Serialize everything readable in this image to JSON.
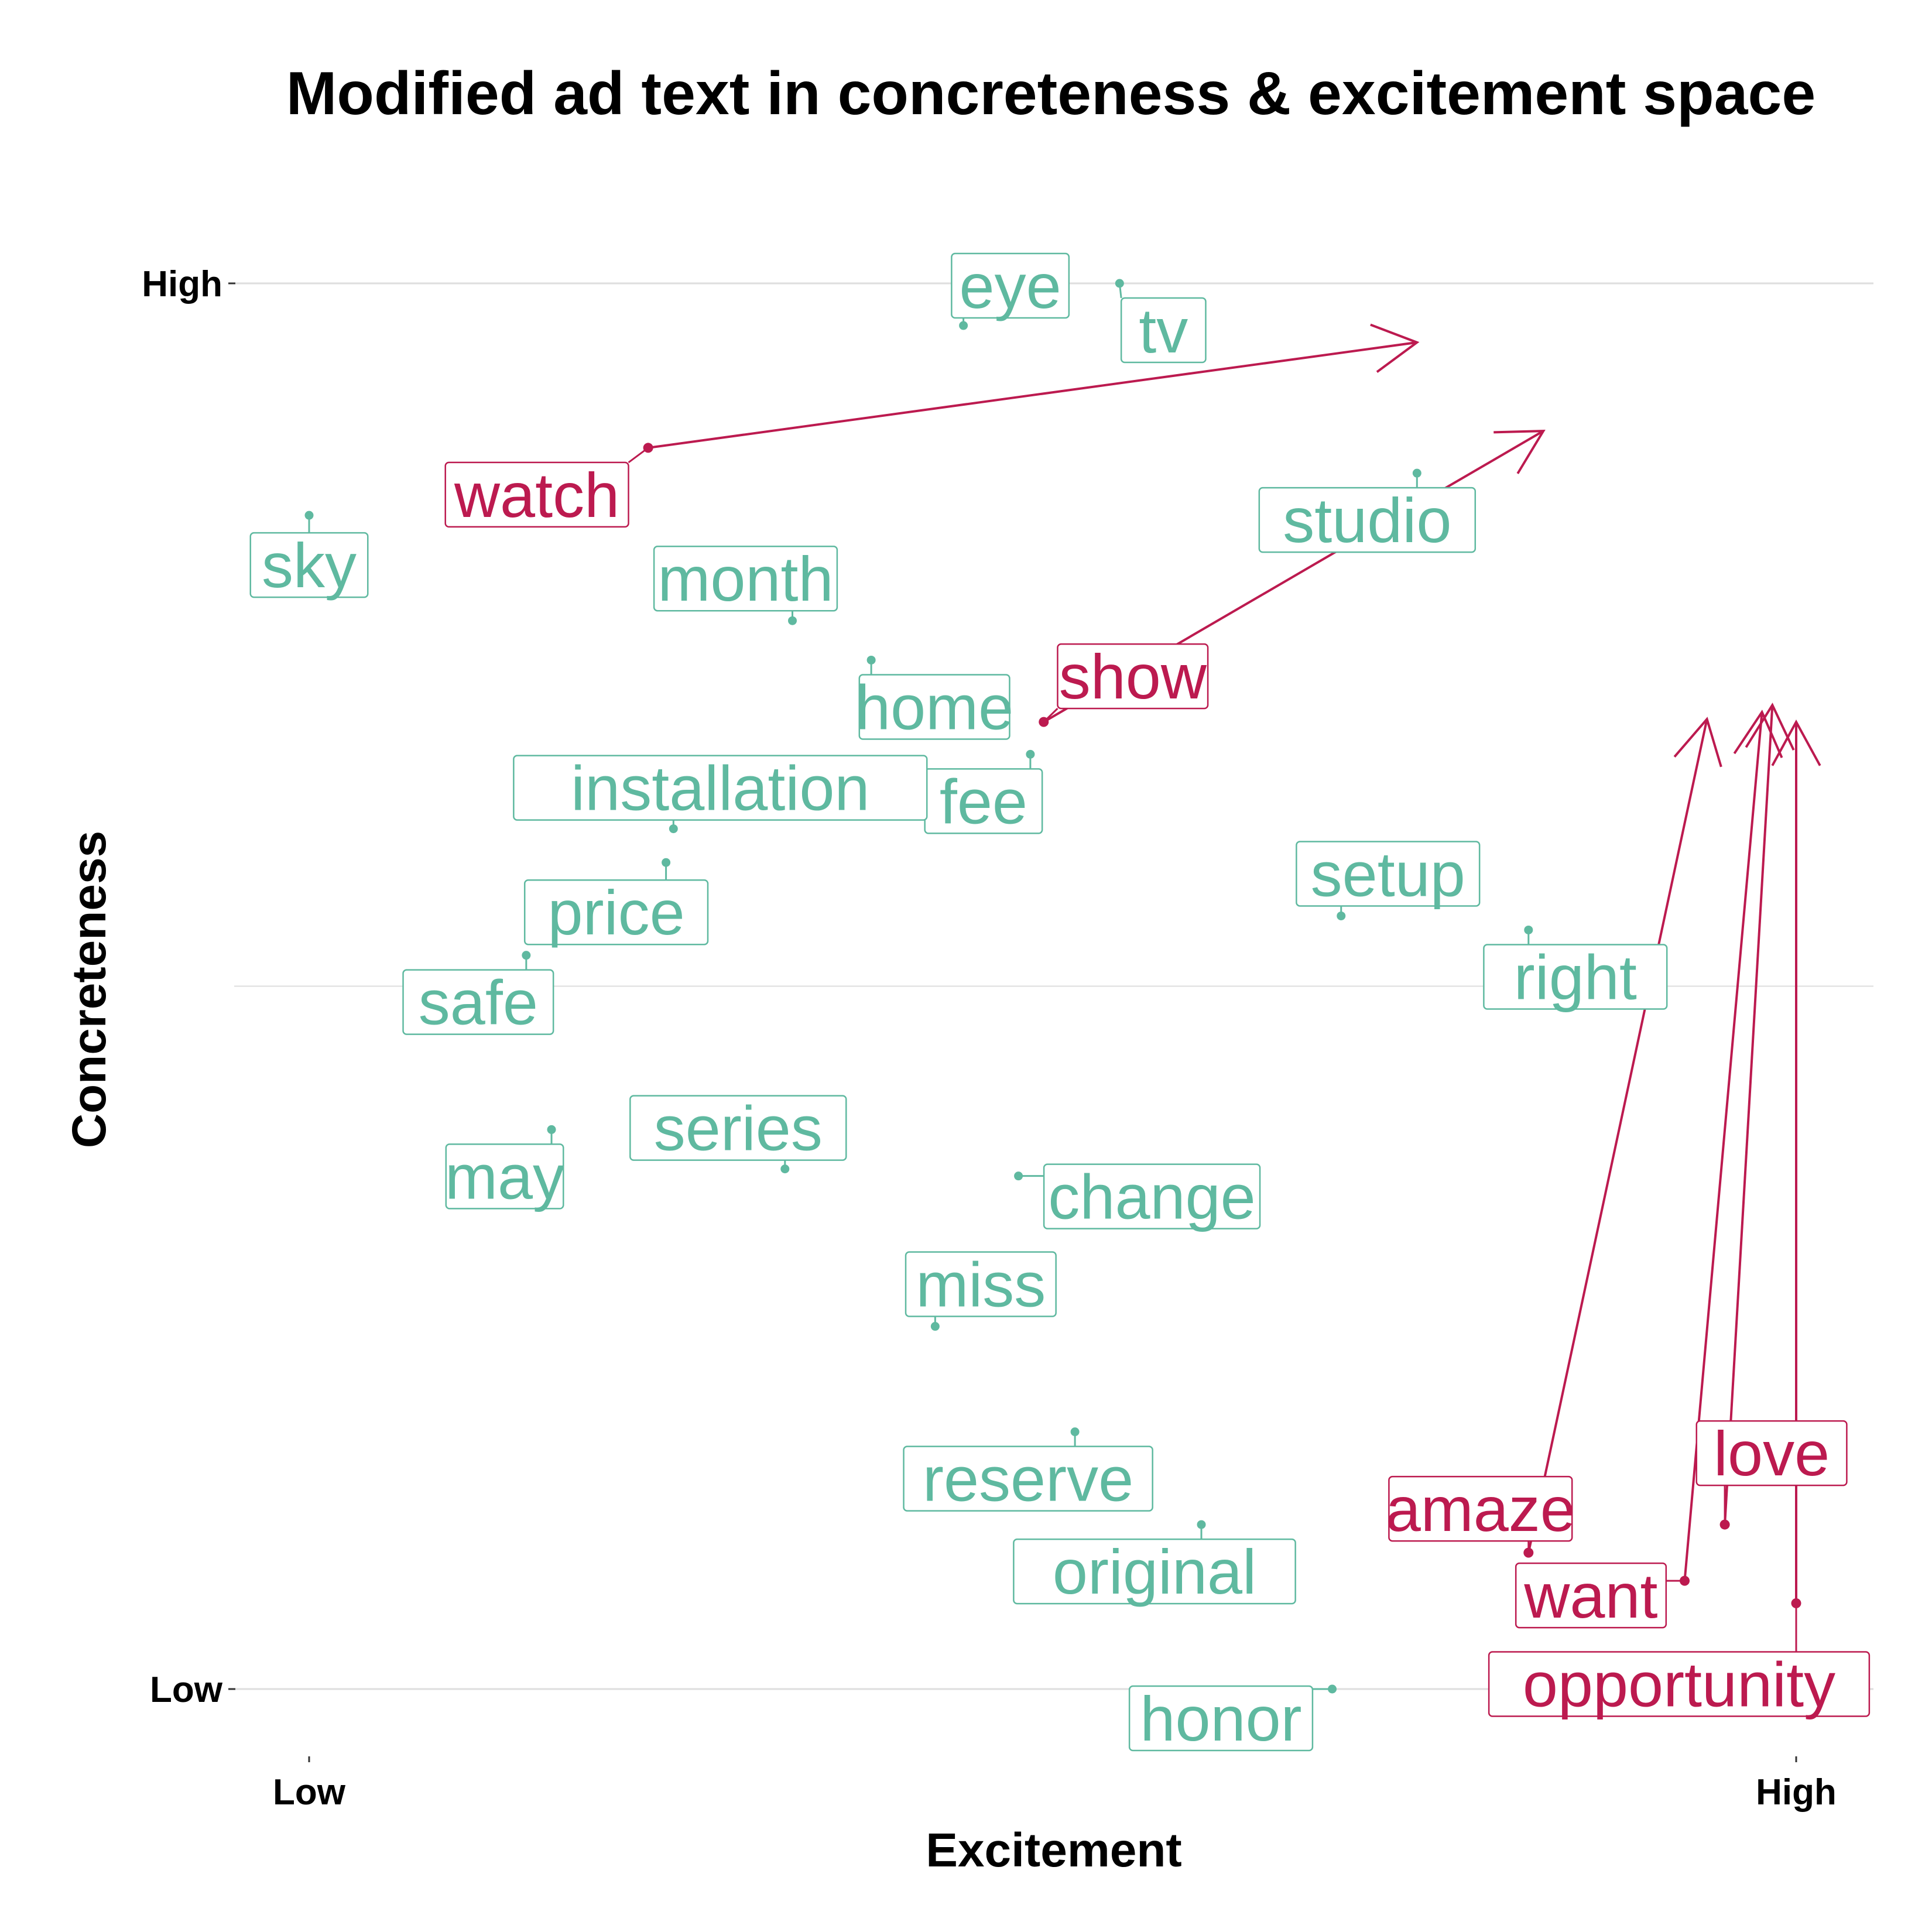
{
  "chart_data": {
    "type": "scatter",
    "title": "Modified ad text in concreteness & excitement space",
    "xlabel": "Excitement",
    "ylabel": "Concreteness",
    "x_ticks": [
      {
        "value": 0,
        "label": "Low"
      },
      {
        "value": 1,
        "label": "High"
      }
    ],
    "y_ticks": [
      {
        "value": 0,
        "label": "Low"
      },
      {
        "value": 1,
        "label": "High"
      }
    ],
    "xlim": [
      -0.05,
      1.05
    ],
    "ylim": [
      -0.05,
      1.14
    ],
    "grid": true,
    "legend": "none",
    "colors": {
      "unchanged": "#5fb9a0",
      "modified": "#bc1a4f",
      "grid": "#dedede"
    },
    "points": [
      {
        "word": "eye",
        "x": 0.44,
        "y": 0.97,
        "group": "unchanged"
      },
      {
        "word": "tv",
        "x": 0.545,
        "y": 1.0,
        "group": "unchanged"
      },
      {
        "word": "sky",
        "x": 0.0,
        "y": 0.835,
        "group": "unchanged"
      },
      {
        "word": "studio",
        "x": 0.745,
        "y": 0.865,
        "group": "unchanged"
      },
      {
        "word": "month",
        "x": 0.325,
        "y": 0.76,
        "group": "unchanged"
      },
      {
        "word": "home",
        "x": 0.378,
        "y": 0.732,
        "group": "unchanged"
      },
      {
        "word": "fee",
        "x": 0.485,
        "y": 0.665,
        "group": "unchanged"
      },
      {
        "word": "installation",
        "x": 0.245,
        "y": 0.612,
        "group": "unchanged"
      },
      {
        "word": "price",
        "x": 0.24,
        "y": 0.588,
        "group": "unchanged"
      },
      {
        "word": "safe",
        "x": 0.146,
        "y": 0.522,
        "group": "unchanged"
      },
      {
        "word": "setup",
        "x": 0.694,
        "y": 0.55,
        "group": "unchanged"
      },
      {
        "word": "right",
        "x": 0.82,
        "y": 0.54,
        "group": "unchanged"
      },
      {
        "word": "may",
        "x": 0.163,
        "y": 0.398,
        "group": "unchanged"
      },
      {
        "word": "series",
        "x": 0.32,
        "y": 0.37,
        "group": "unchanged"
      },
      {
        "word": "change",
        "x": 0.477,
        "y": 0.365,
        "group": "unchanged"
      },
      {
        "word": "miss",
        "x": 0.421,
        "y": 0.258,
        "group": "unchanged"
      },
      {
        "word": "reserve",
        "x": 0.515,
        "y": 0.183,
        "group": "unchanged"
      },
      {
        "word": "original",
        "x": 0.6,
        "y": 0.117,
        "group": "unchanged"
      },
      {
        "word": "honor",
        "x": 0.688,
        "y": 0.0,
        "group": "unchanged"
      },
      {
        "word": "watch",
        "x": 0.228,
        "y": 0.883,
        "group": "modified",
        "x_end": 0.745,
        "y_end": 0.958
      },
      {
        "word": "show",
        "x": 0.494,
        "y": 0.688,
        "group": "modified",
        "x_end": 0.83,
        "y_end": 0.895
      },
      {
        "word": "amaze",
        "x": 0.82,
        "y": 0.097,
        "group": "modified",
        "x_end": 0.94,
        "y_end": 0.69
      },
      {
        "word": "want",
        "x": 0.925,
        "y": 0.077,
        "group": "modified",
        "x_end": 0.977,
        "y_end": 0.695
      },
      {
        "word": "love",
        "x": 0.952,
        "y": 0.117,
        "group": "modified",
        "x_end": 0.984,
        "y_end": 0.7
      },
      {
        "word": "opportunity",
        "x": 1.0,
        "y": 0.061,
        "group": "modified",
        "x_end": 1.0,
        "y_end": 0.688
      }
    ]
  }
}
